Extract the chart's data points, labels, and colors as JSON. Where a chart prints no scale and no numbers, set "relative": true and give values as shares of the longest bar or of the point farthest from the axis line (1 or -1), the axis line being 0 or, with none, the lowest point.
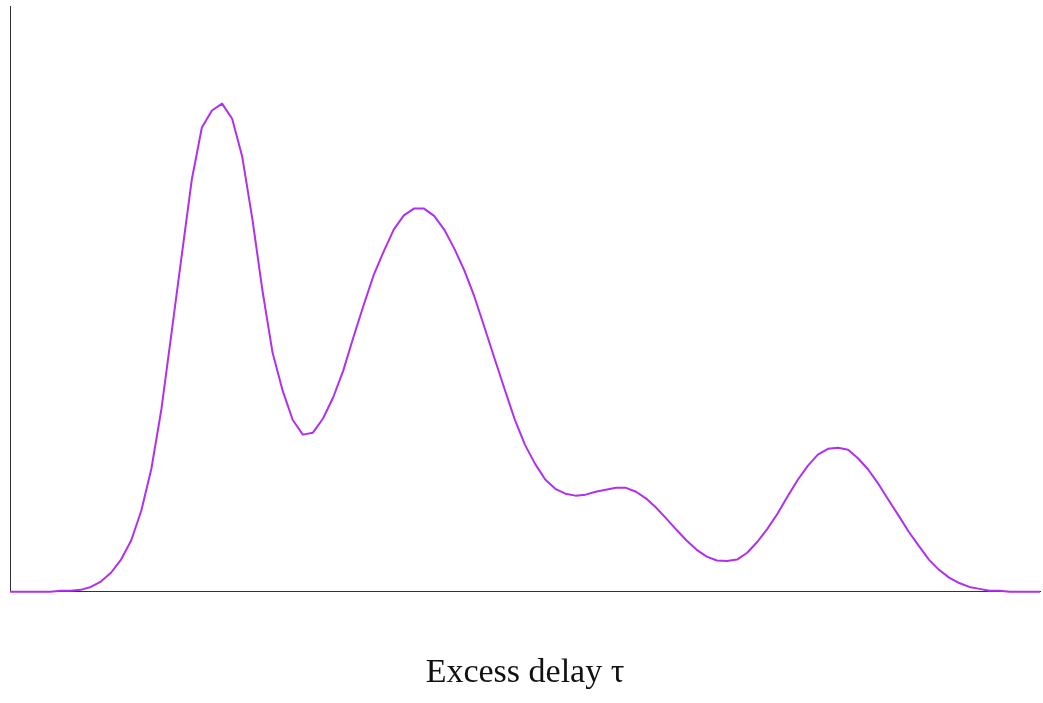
{
  "chart_data": {
    "type": "line",
    "xlabel": "Excess delay τ",
    "relative": true,
    "grid": false,
    "legend": false,
    "marker": "none",
    "line_style": "solid",
    "categories": [
      null,
      null,
      null,
      null,
      null,
      null,
      null,
      null,
      null,
      null,
      null,
      null,
      null,
      null,
      null,
      null,
      null,
      null,
      null,
      null,
      null,
      null,
      null,
      null,
      null,
      null,
      null,
      null,
      null,
      null,
      null,
      null,
      null,
      null,
      null,
      null,
      null,
      null,
      null,
      null,
      null,
      null,
      null,
      null,
      null,
      null,
      null,
      null,
      null,
      null,
      null,
      null,
      null,
      null,
      null,
      null,
      null,
      null,
      null,
      null,
      null,
      null,
      null,
      null,
      null,
      null,
      null,
      null,
      null,
      null,
      null,
      null,
      null,
      null,
      null,
      null,
      null,
      null,
      null,
      null,
      null,
      null,
      null,
      null,
      null,
      null,
      null,
      null,
      null,
      null,
      null,
      null,
      null,
      null,
      null,
      null,
      null,
      null,
      null,
      null,
      null,
      null,
      null
    ],
    "series": [
      {
        "color": "#b030f0",
        "values": [
          0,
          0,
          0,
          0,
          0,
          0.002,
          0.002,
          0.004,
          0.01,
          0.021,
          0.039,
          0.066,
          0.105,
          0.166,
          0.252,
          0.375,
          0.531,
          0.688,
          0.844,
          0.951,
          0.986,
          1,
          0.969,
          0.891,
          0.764,
          0.617,
          0.49,
          0.412,
          0.352,
          0.322,
          0.326,
          0.355,
          0.398,
          0.453,
          0.521,
          0.586,
          0.648,
          0.697,
          0.742,
          0.771,
          0.785,
          0.785,
          0.77,
          0.742,
          0.703,
          0.658,
          0.604,
          0.541,
          0.477,
          0.414,
          0.352,
          0.301,
          0.262,
          0.23,
          0.211,
          0.201,
          0.197,
          0.199,
          0.205,
          0.209,
          0.213,
          0.213,
          0.205,
          0.191,
          0.172,
          0.15,
          0.127,
          0.105,
          0.086,
          0.072,
          0.064,
          0.063,
          0.066,
          0.08,
          0.102,
          0.129,
          0.16,
          0.195,
          0.229,
          0.258,
          0.281,
          0.293,
          0.295,
          0.291,
          0.273,
          0.25,
          0.221,
          0.188,
          0.156,
          0.123,
          0.094,
          0.066,
          0.045,
          0.029,
          0.018,
          0.01,
          0.006,
          0.002,
          0.002,
          0,
          0,
          0,
          0
        ]
      }
    ]
  }
}
